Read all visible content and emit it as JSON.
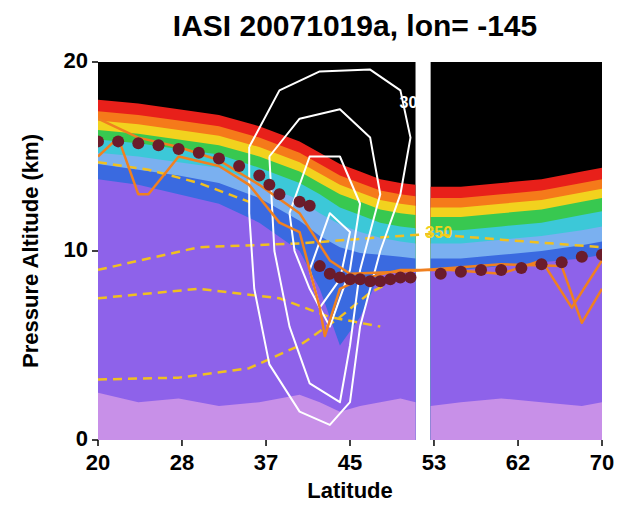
{
  "chart_data": {
    "type": "area",
    "title": "IASI 20071019a, lon= -145",
    "x_label": "Latitude",
    "y_label": "Pressure Altitude (km)",
    "xlim": [
      20,
      70
    ],
    "ylim": [
      0,
      20
    ],
    "xticks": [
      20,
      {
        "value": 28.33,
        "label": "28"
      },
      {
        "value": 36.67,
        "label": "37"
      },
      45,
      {
        "value": 53.33,
        "label": "53"
      },
      {
        "value": 61.67,
        "label": "62"
      },
      70
    ],
    "yticks": [
      0,
      10,
      20
    ],
    "x": [
      20,
      24,
      28,
      32,
      36,
      40,
      42,
      44,
      46,
      48,
      50,
      51.5,
      52.2,
      53,
      56,
      60,
      64,
      68,
      70
    ],
    "series": [
      {
        "type": "area",
        "color": "#000000",
        "values": [
          20,
          20,
          20,
          20,
          20,
          20,
          20,
          20,
          20,
          20,
          20,
          20,
          null,
          20,
          20,
          20,
          20,
          20,
          20
        ]
      },
      {
        "type": "area",
        "color": "#e8201a",
        "values": [
          18,
          17.8,
          17.5,
          17.2,
          16.6,
          15.8,
          15.2,
          14.6,
          14.2,
          13.8,
          13.6,
          13.5,
          null,
          13.4,
          13.4,
          13.6,
          13.8,
          14.2,
          14.4
        ]
      },
      {
        "type": "area",
        "color": "#f57a1a",
        "values": [
          17.4,
          17.2,
          16.9,
          16.6,
          16.0,
          15.2,
          14.6,
          14.0,
          13.6,
          13.2,
          13.0,
          12.9,
          null,
          12.8,
          12.8,
          13.0,
          13.2,
          13.6,
          13.8
        ]
      },
      {
        "type": "area",
        "color": "#f2d21e",
        "values": [
          16.9,
          16.7,
          16.4,
          16.1,
          15.5,
          14.7,
          14.1,
          13.5,
          13.1,
          12.7,
          12.5,
          12.4,
          null,
          12.3,
          12.3,
          12.5,
          12.7,
          13.1,
          13.3
        ]
      },
      {
        "type": "area",
        "color": "#38c850",
        "values": [
          16.4,
          16.2,
          15.9,
          15.6,
          15.0,
          14.2,
          13.6,
          13.0,
          12.6,
          12.2,
          12.0,
          11.9,
          null,
          11.8,
          11.8,
          12.0,
          12.2,
          12.6,
          12.8
        ]
      },
      {
        "type": "area",
        "color": "#3cc8d8",
        "values": [
          15.9,
          15.7,
          15.4,
          15.1,
          14.4,
          13.6,
          13.0,
          12.3,
          11.9,
          11.5,
          11.3,
          11.2,
          null,
          11.1,
          11.1,
          11.3,
          11.5,
          11.9,
          12.1
        ]
      },
      {
        "type": "area",
        "color": "#7ab0f0",
        "values": [
          15.2,
          15.0,
          14.7,
          14.4,
          13.6,
          12.7,
          12.0,
          11.4,
          11.0,
          10.7,
          10.5,
          10.4,
          null,
          10.4,
          10.4,
          10.6,
          10.8,
          11.1,
          11.3
        ]
      },
      {
        "type": "area",
        "color": "#3a6ae0",
        "values": [
          14.6,
          14.3,
          14.0,
          13.6,
          12.8,
          11.6,
          10.8,
          10.2,
          9.9,
          9.8,
          9.7,
          9.6,
          null,
          9.6,
          9.6,
          9.8,
          10.0,
          10.3,
          10.5
        ]
      },
      {
        "type": "area",
        "color": "#8e62ea",
        "values": [
          13.8,
          13.5,
          13.0,
          12.5,
          11.5,
          10.0,
          8.0,
          5.0,
          6.5,
          8.8,
          9.0,
          9.0,
          null,
          9.0,
          9.0,
          9.2,
          9.4,
          9.6,
          9.8
        ]
      },
      {
        "type": "area",
        "color": "#c890e8",
        "values": [
          2.5,
          2.0,
          2.2,
          1.8,
          2.0,
          2.4,
          2.0,
          1.5,
          1.8,
          2.0,
          2.2,
          2.0,
          null,
          1.8,
          2.0,
          2.2,
          2.0,
          1.8,
          2.0
        ]
      },
      {
        "type": "line",
        "color": "#f0c020",
        "line_style": "dashed",
        "x": [
          20,
          25,
          30,
          35
        ],
        "values": [
          14.7,
          14.3,
          13.6,
          12.6
        ]
      },
      {
        "type": "line",
        "color": "#f0c020",
        "line_style": "dashed",
        "x": [
          20,
          30,
          40,
          50,
          53,
          60,
          70
        ],
        "values": [
          9.0,
          10.2,
          10.4,
          10.8,
          10.9,
          10.6,
          10.2
        ]
      },
      {
        "type": "line",
        "color": "#f0c020",
        "line_style": "dashed",
        "x": [
          20,
          30,
          38,
          43,
          48
        ],
        "values": [
          7.5,
          8.0,
          7.5,
          6.5,
          6.0
        ]
      },
      {
        "type": "line",
        "color": "#f0c020",
        "line_style": "dashed",
        "x": [
          20,
          28,
          35,
          40,
          44,
          47,
          50
        ],
        "values": [
          3.2,
          3.3,
          3.8,
          5.0,
          6.5,
          7.8,
          8.6
        ]
      },
      {
        "type": "line",
        "color": "#ffffff",
        "line_style": "solid",
        "x": [
          35,
          38,
          42,
          47,
          50,
          51,
          50,
          48,
          46,
          45,
          43,
          40,
          37,
          35.5,
          35,
          35
        ],
        "values": [
          15.5,
          18.5,
          19.5,
          19.6,
          18.5,
          16,
          13,
          10,
          6,
          2,
          0.8,
          1.5,
          4,
          8,
          12,
          15.5
        ]
      },
      {
        "type": "line",
        "color": "#ffffff",
        "line_style": "solid",
        "x": [
          37,
          40,
          44,
          47,
          48,
          46,
          45,
          44,
          41,
          39,
          37.5,
          37
        ],
        "values": [
          15,
          17,
          17.5,
          16,
          13,
          9,
          5,
          2,
          3,
          6,
          10,
          15
        ]
      },
      {
        "type": "line",
        "color": "#ffffff",
        "line_style": "solid",
        "x": [
          39,
          41,
          44,
          46,
          45,
          43,
          41,
          39.5,
          39
        ],
        "values": [
          12,
          15,
          15,
          12.5,
          9,
          6,
          8,
          10,
          12
        ]
      },
      {
        "type": "line",
        "color": "#ffffff",
        "line_style": "solid",
        "x": [
          41,
          43,
          45,
          44,
          42,
          41
        ],
        "values": [
          9,
          12,
          11,
          8.5,
          7,
          9
        ]
      },
      {
        "type": "line",
        "color": "#f08020",
        "line_style": "solid",
        "x": [
          20,
          22,
          24,
          25,
          28,
          32,
          35,
          38,
          40,
          42,
          42.5,
          44,
          46,
          50,
          55,
          60,
          64,
          67,
          70
        ],
        "values": [
          15,
          16,
          13,
          13,
          15,
          14.5,
          13.5,
          11.5,
          11,
          7,
          5.5,
          8,
          8.5,
          9,
          9,
          8.8,
          9.5,
          7,
          9.5
        ]
      },
      {
        "type": "line",
        "color": "#f08020",
        "line_style": "solid",
        "x": [
          20,
          24,
          28,
          32,
          36,
          40,
          43,
          45,
          50,
          55,
          60,
          66,
          68,
          70
        ],
        "values": [
          17,
          16,
          15.5,
          14.8,
          13.5,
          12.0,
          9.5,
          8.8,
          8.9,
          9.1,
          9.3,
          9.2,
          6.2,
          8
        ]
      },
      {
        "type": "scatter",
        "color": "#6b1c2b",
        "marker": "circle",
        "x": [
          20,
          22,
          24,
          26,
          28,
          30,
          32,
          34,
          36,
          37,
          38,
          40,
          41,
          42,
          43,
          44,
          45,
          46,
          47,
          48,
          49,
          50,
          51,
          54,
          56,
          58,
          60,
          62,
          64,
          66,
          68,
          70
        ],
        "values": [
          15.8,
          15.8,
          15.7,
          15.6,
          15.4,
          15.2,
          14.9,
          14.5,
          14.0,
          13.5,
          13.0,
          12.6,
          12.4,
          9.2,
          8.8,
          8.6,
          8.5,
          8.5,
          8.4,
          8.4,
          8.5,
          8.6,
          8.6,
          8.8,
          8.9,
          9.0,
          9.0,
          9.1,
          9.3,
          9.4,
          9.7,
          9.8
        ]
      }
    ],
    "annotations": [
      {
        "text": "30",
        "x": 50.8,
        "y": 17.8,
        "color": "#ffffff"
      },
      {
        "text": "350",
        "x": 53.8,
        "y": 10.9,
        "color": "#f2d21e"
      }
    ]
  }
}
